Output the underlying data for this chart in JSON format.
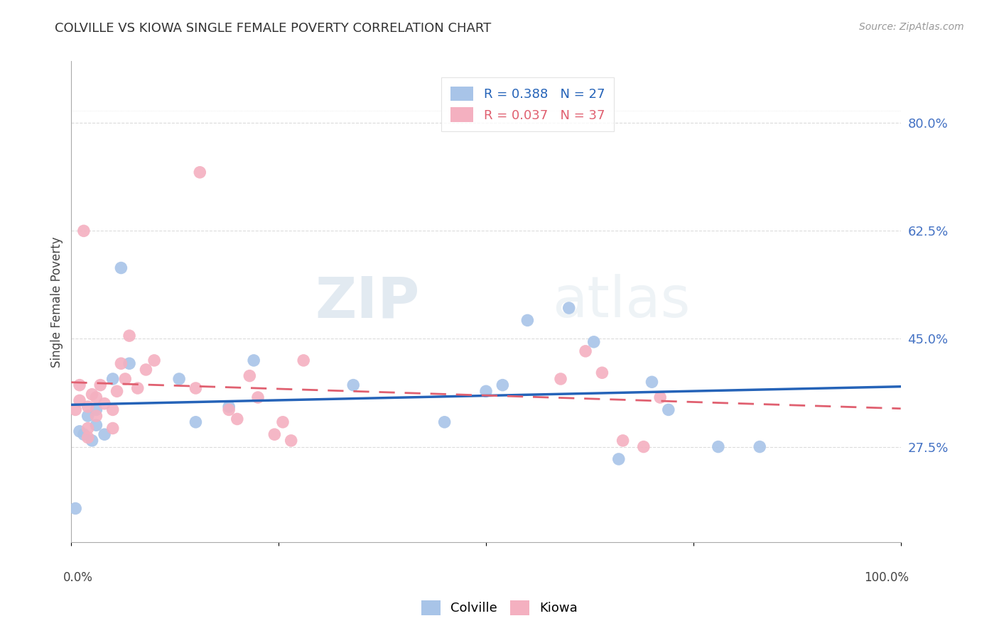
{
  "title": "COLVILLE VS KIOWA SINGLE FEMALE POVERTY CORRELATION CHART",
  "source": "Source: ZipAtlas.com",
  "ylabel": "Single Female Poverty",
  "colville_R": 0.388,
  "colville_N": 27,
  "kiowa_R": 0.037,
  "kiowa_N": 37,
  "colville_color": "#a8c4e8",
  "kiowa_color": "#f4b0c0",
  "colville_line_color": "#2563b8",
  "kiowa_line_color": "#e06070",
  "background_color": "#ffffff",
  "grid_color": "#cccccc",
  "watermark_zip": "ZIP",
  "watermark_atlas": "atlas",
  "ytick_labels": [
    "27.5%",
    "45.0%",
    "62.5%",
    "80.0%"
  ],
  "ytick_values": [
    0.275,
    0.45,
    0.625,
    0.8
  ],
  "colville_x": [
    0.005,
    0.01,
    0.015,
    0.02,
    0.025,
    0.03,
    0.03,
    0.04,
    0.05,
    0.06,
    0.07,
    0.13,
    0.15,
    0.19,
    0.22,
    0.34,
    0.45,
    0.5,
    0.52,
    0.55,
    0.6,
    0.63,
    0.66,
    0.7,
    0.72,
    0.78,
    0.83
  ],
  "colville_y": [
    0.175,
    0.3,
    0.295,
    0.325,
    0.285,
    0.31,
    0.335,
    0.295,
    0.385,
    0.565,
    0.41,
    0.385,
    0.315,
    0.34,
    0.415,
    0.375,
    0.315,
    0.365,
    0.375,
    0.48,
    0.5,
    0.445,
    0.255,
    0.38,
    0.335,
    0.275,
    0.275
  ],
  "kiowa_x": [
    0.005,
    0.01,
    0.01,
    0.015,
    0.02,
    0.02,
    0.02,
    0.025,
    0.03,
    0.03,
    0.035,
    0.04,
    0.05,
    0.05,
    0.055,
    0.06,
    0.065,
    0.07,
    0.08,
    0.09,
    0.1,
    0.15,
    0.155,
    0.19,
    0.2,
    0.215,
    0.225,
    0.245,
    0.255,
    0.265,
    0.28,
    0.59,
    0.62,
    0.64,
    0.665,
    0.69,
    0.71
  ],
  "kiowa_y": [
    0.335,
    0.35,
    0.375,
    0.625,
    0.29,
    0.305,
    0.34,
    0.36,
    0.325,
    0.355,
    0.375,
    0.345,
    0.305,
    0.335,
    0.365,
    0.41,
    0.385,
    0.455,
    0.37,
    0.4,
    0.415,
    0.37,
    0.72,
    0.335,
    0.32,
    0.39,
    0.355,
    0.295,
    0.315,
    0.285,
    0.415,
    0.385,
    0.43,
    0.395,
    0.285,
    0.275,
    0.355
  ]
}
